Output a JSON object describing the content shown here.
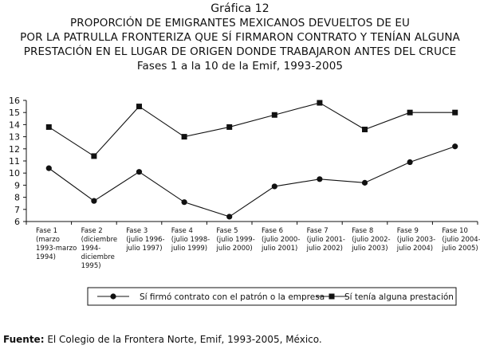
{
  "chart_data": {
    "type": "line",
    "title": [
      "Gráfica 12",
      "PROPORCIÓN DE EMIGRANTES MEXICANOS DEVUELTOS DE EU",
      "POR LA PATRULLA FRONTERIZA QUE SÍ FIRMARON CONTRATO Y TENÍAN ALGUNA",
      "PRESTACIÓN EN EL LUGAR DE ORIGEN DONDE TRABAJARON ANTES DEL CRUCE",
      "Fases 1 a la 10 de la Emif, 1993-2005"
    ],
    "ylim": [
      6,
      16
    ],
    "yticks": [
      "6",
      "7",
      "8",
      "9",
      "10",
      "11",
      "12",
      "13",
      "14",
      "15",
      "16"
    ],
    "categories": [
      [
        "Fase 1",
        "(marzo",
        "1993-marzo",
        "1994)"
      ],
      [
        "Fase 2",
        "(diciembre",
        "1994-",
        "diciembre",
        "1995)"
      ],
      [
        "Fase 3",
        "(julio 1996-",
        "julio 1997)"
      ],
      [
        "Fase 4",
        "(julio 1998-",
        "julio 1999)"
      ],
      [
        "Fase 5",
        "(julio 1999-",
        "julio 2000)"
      ],
      [
        "Fase 6",
        "(julio 2000-",
        "julio 2001)"
      ],
      [
        "Fase 7",
        "(julio 2001-",
        "julio 2002)"
      ],
      [
        "Fase 8",
        "(julio 2002-",
        "julio 2003)"
      ],
      [
        "Fase 9",
        "(julio 2003-",
        "julio 2004)"
      ],
      [
        "Fase 10",
        "(julio 2004-",
        "julio 2005)"
      ]
    ],
    "series": [
      {
        "name": "Sí firmó contrato con el patrón o la empresa",
        "marker": "circle",
        "values": [
          10.4,
          7.7,
          10.1,
          7.6,
          6.4,
          8.9,
          9.5,
          9.2,
          10.9,
          12.2
        ]
      },
      {
        "name": "Sí tenía alguna prestación",
        "marker": "square",
        "values": [
          13.8,
          11.4,
          15.5,
          13.0,
          13.8,
          14.8,
          15.8,
          13.6,
          15.0,
          15.0
        ]
      }
    ],
    "colors": {
      "line": "#111111",
      "axis": "#111111"
    },
    "source": {
      "label": "Fuente:",
      "text": " El Colegio de la Frontera Norte, Emif, 1993-2005, México."
    }
  }
}
